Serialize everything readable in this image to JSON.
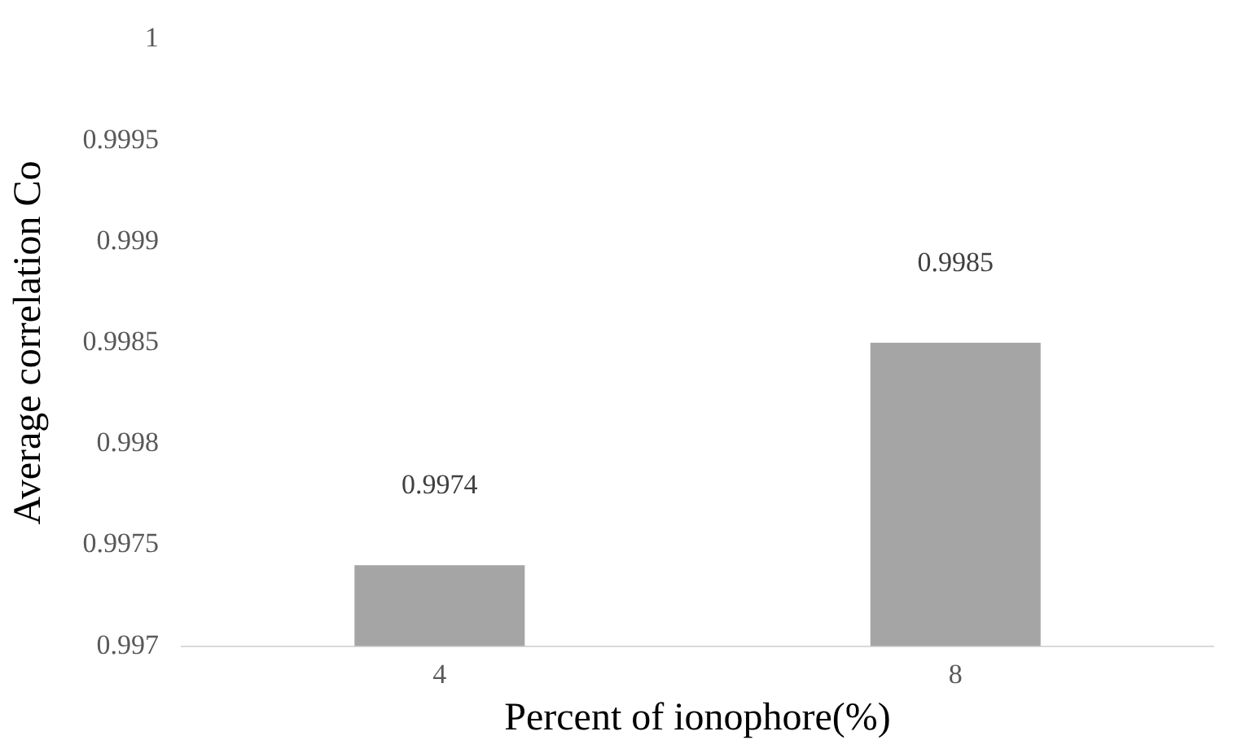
{
  "chart_data": {
    "type": "bar",
    "xlabel": "Percent of ionophore(%)",
    "ylabel": "Average correlation Co",
    "categories": [
      "4",
      "8"
    ],
    "series": [
      {
        "color": "#a5a5a5",
        "values": [
          0.9974,
          0.9985
        ]
      }
    ],
    "ylim": [
      0.997,
      1
    ],
    "yticks": [
      0.997,
      0.9975,
      0.998,
      0.9985,
      0.999,
      0.9995,
      1
    ],
    "grid": false,
    "legend": false,
    "data_labels": true
  }
}
